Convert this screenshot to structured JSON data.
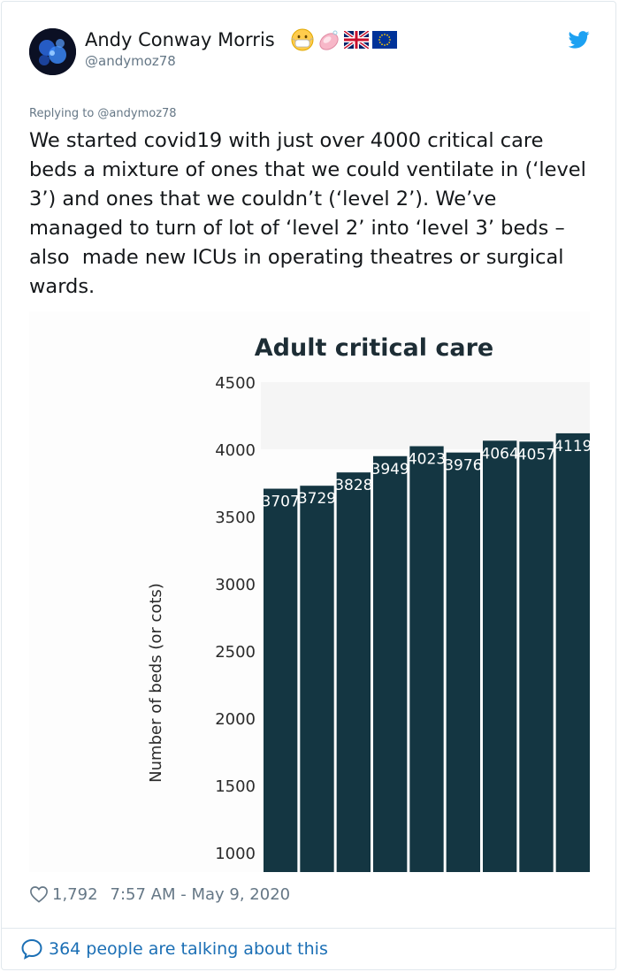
{
  "tweet": {
    "author_name": "Andy Conway Morris",
    "author_handle": "@andymoz78",
    "name_emojis": [
      "mask-emoji",
      "soap-emoji",
      "uk-flag",
      "eu-flag"
    ],
    "replying_to": "Replying to @andymoz78",
    "text": "We started covid19 with just over 4000 critical care beds a mixture of ones that we could ventilate in (‘level 3’) and ones that we couldn’t (‘level 2’). We’ve managed to turn of lot of ‘level 2’ into ‘level 3’ beds – also  made new ICUs in operating theatres or surgical wards.",
    "likes": "1,792",
    "timestamp": "7:57 AM - May 9, 2020",
    "talking": "364 people are talking about this",
    "twitter_blue": "#1da1f2",
    "link_blue": "#1b6fb5"
  },
  "chart_data": {
    "type": "bar",
    "title": "Adult critical care",
    "ylabel": "Number of beds (or cots)",
    "xlabel": "",
    "ylim": [
      1000,
      4500
    ],
    "yticks": [
      1000,
      1500,
      2000,
      2500,
      3000,
      3500,
      4000,
      4500
    ],
    "values": [
      3707,
      3729,
      3828,
      3949,
      4023,
      3976,
      4064,
      4057,
      4119
    ],
    "bar_color": "#143642",
    "label_color": "#ffffff",
    "plot_bg": "#f5f5f5"
  }
}
